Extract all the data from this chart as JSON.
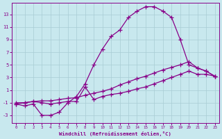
{
  "bg_color": "#c8e8ee",
  "line_color": "#880088",
  "grid_color": "#a8ccd4",
  "xlabel": "Windchill (Refroidissement éolien,°C)",
  "xlim_min": -0.5,
  "xlim_max": 23.5,
  "ylim_min": -4.2,
  "ylim_max": 14.8,
  "xticks": [
    0,
    1,
    2,
    3,
    4,
    5,
    6,
    7,
    8,
    9,
    10,
    11,
    12,
    13,
    14,
    15,
    16,
    17,
    18,
    19,
    20,
    21,
    22,
    23
  ],
  "yticks": [
    -3,
    -1,
    1,
    3,
    5,
    7,
    9,
    11,
    13
  ],
  "curve1_x": [
    0,
    1,
    2,
    3,
    4,
    5,
    6,
    7,
    8,
    9,
    10,
    11,
    12,
    13,
    14,
    15,
    16,
    17,
    18,
    19,
    20,
    21,
    22,
    23
  ],
  "curve1_y": [
    -1.2,
    -1.5,
    -1.2,
    -3.0,
    -3.0,
    -2.5,
    -1.0,
    0.0,
    2.0,
    5.0,
    7.5,
    9.5,
    10.5,
    12.5,
    13.5,
    14.2,
    14.2,
    13.5,
    12.5,
    9.0,
    5.0,
    4.5,
    4.0,
    3.2
  ],
  "curve2_x": [
    0,
    1,
    2,
    3,
    4,
    5,
    6,
    7,
    8,
    9,
    10,
    11,
    12,
    13,
    14,
    15,
    16,
    17,
    18,
    19,
    20,
    21,
    22,
    23
  ],
  "curve2_y": [
    -1.2,
    -1.0,
    -0.8,
    -0.7,
    -0.7,
    -0.5,
    -0.3,
    -0.2,
    0.2,
    0.5,
    0.8,
    1.2,
    1.8,
    2.3,
    2.8,
    3.2,
    3.7,
    4.2,
    4.6,
    5.0,
    5.5,
    4.5,
    4.0,
    3.2
  ],
  "curve3_x": [
    0,
    1,
    2,
    3,
    4,
    5,
    6,
    7,
    8,
    9,
    10,
    11,
    12,
    13,
    14,
    15,
    16,
    17,
    18,
    19,
    20,
    21,
    22,
    23
  ],
  "curve3_y": [
    -1.0,
    -1.0,
    -0.8,
    -1.0,
    -1.2,
    -1.0,
    -0.8,
    -0.8,
    1.5,
    -0.5,
    0.0,
    0.3,
    0.5,
    0.8,
    1.2,
    1.5,
    2.0,
    2.5,
    3.0,
    3.5,
    4.0,
    3.5,
    3.5,
    3.2
  ]
}
